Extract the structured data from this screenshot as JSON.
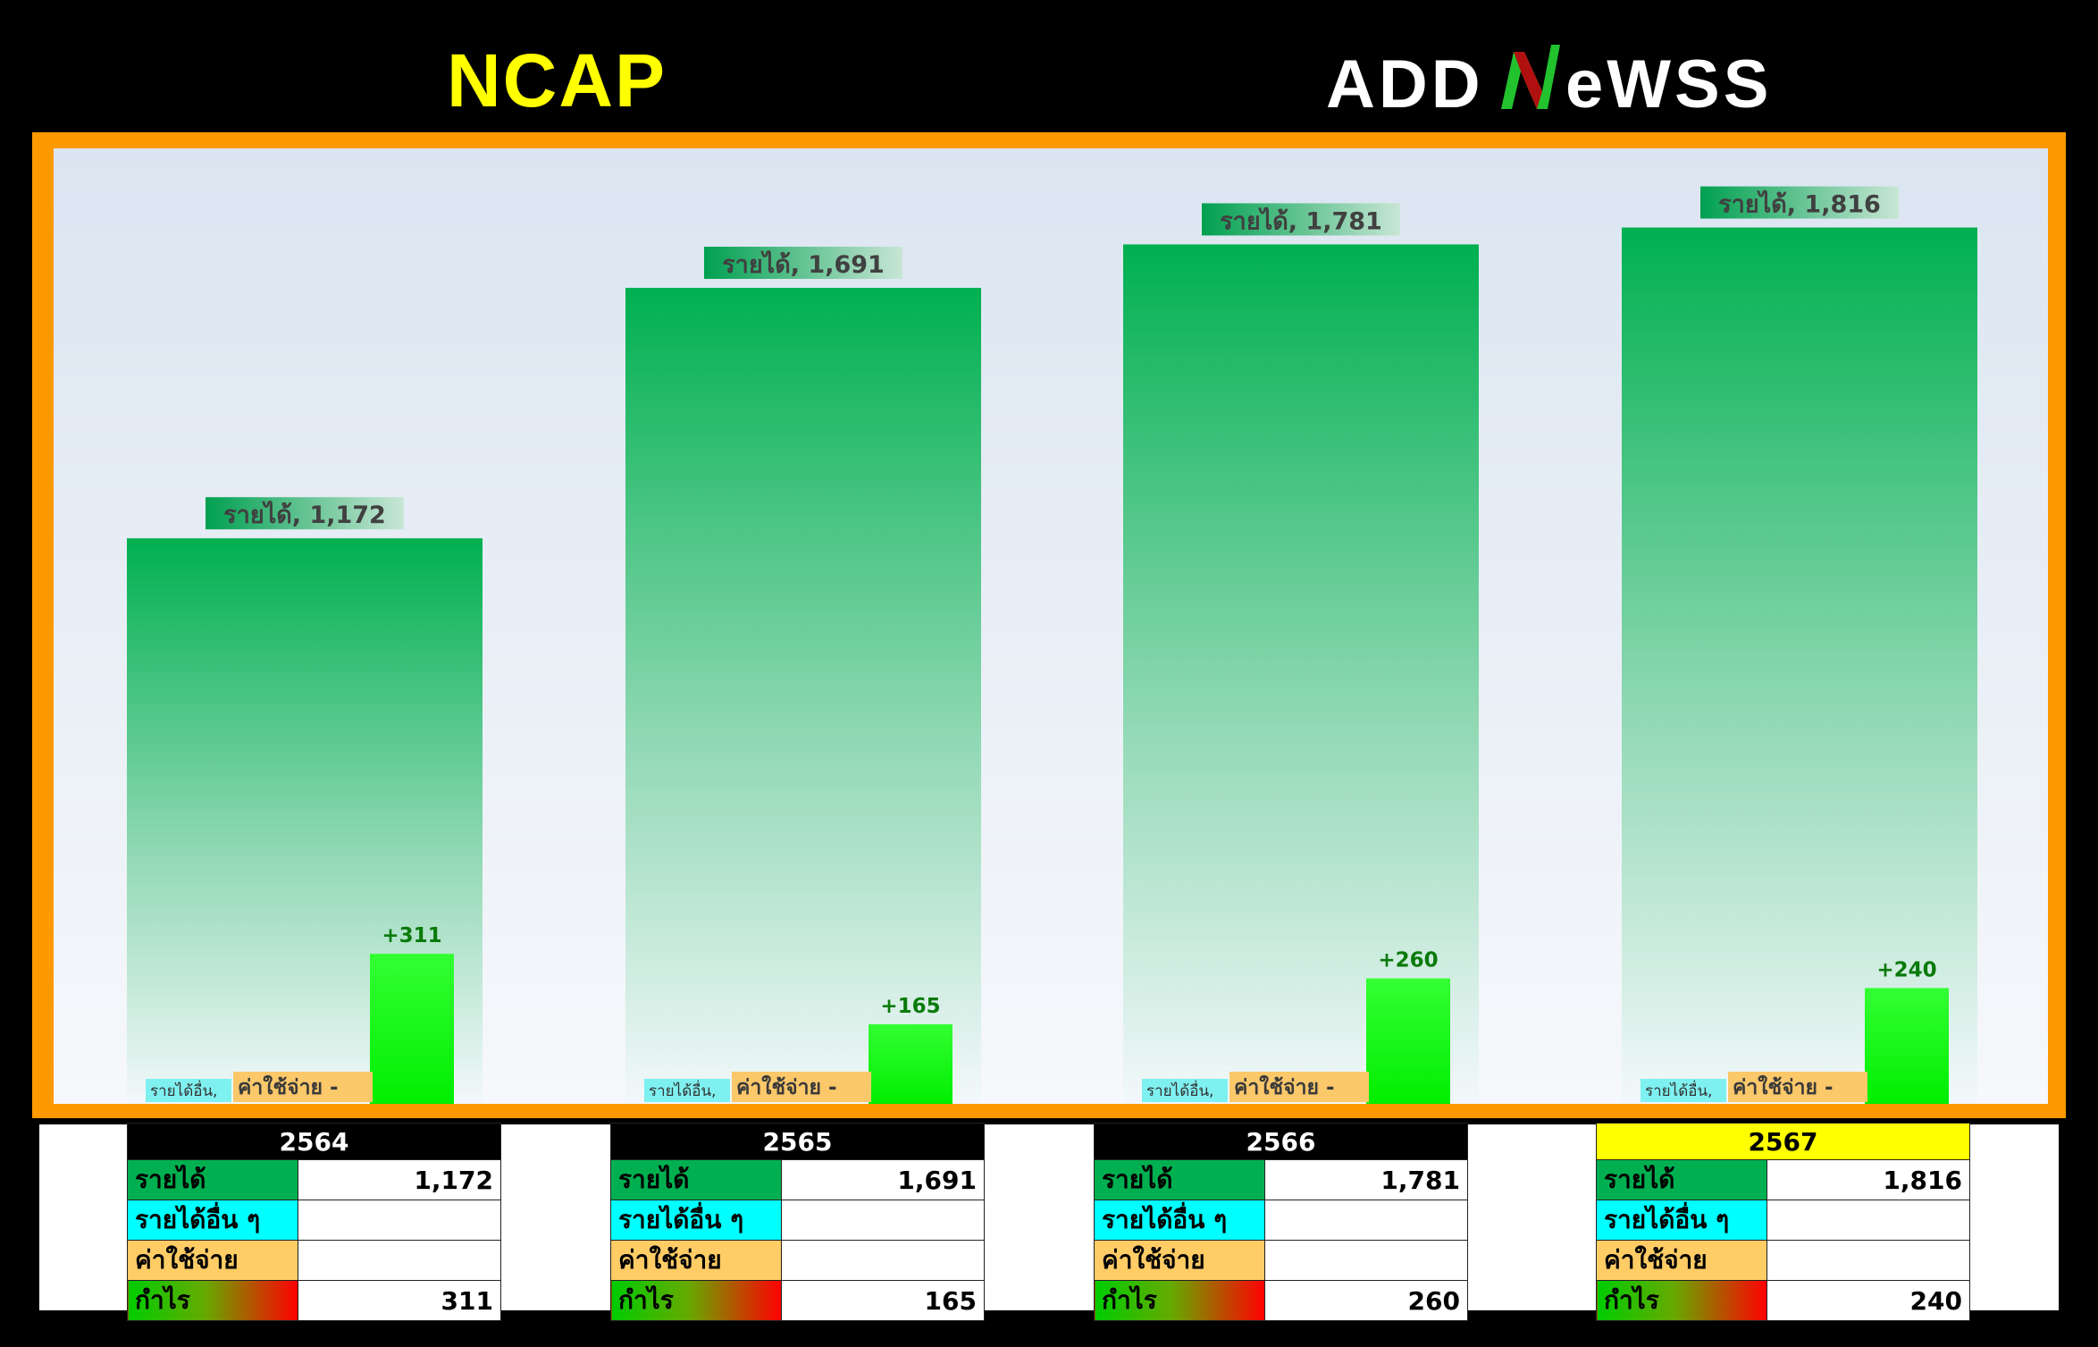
{
  "header": {
    "title": "NCAP",
    "logo_text": "ADDNewss"
  },
  "chart_data": {
    "type": "bar",
    "categories": [
      "2564",
      "2565",
      "2566",
      "2567"
    ],
    "series": [
      {
        "name": "รายได้",
        "values": [
          1172,
          1691,
          1781,
          1816
        ],
        "color": "#00b050"
      },
      {
        "name": "รายได้อื่น",
        "values": [
          null,
          null,
          null,
          null
        ],
        "color": "#00ffff"
      },
      {
        "name": "ค่าใช้จ่าย",
        "values": [
          null,
          null,
          null,
          null
        ],
        "color": "#ffcc66"
      },
      {
        "name": "กำไร",
        "values": [
          311,
          165,
          260,
          240
        ],
        "color": "#1aff1a"
      }
    ],
    "data_labels": {
      "revenue": [
        "รายได้, 1,172",
        "รายได้, 1,691",
        "รายได้, 1,781",
        "รายได้, 1,816"
      ],
      "other_income": [
        "รายได้อื่น,",
        "รายได้อื่น,",
        "รายได้อื่น,",
        "รายได้อื่น,"
      ],
      "expense": [
        "ค่าใช้จ่าย -",
        "ค่าใช้จ่าย -",
        "ค่าใช้จ่าย -",
        "ค่าใช้จ่าย -"
      ],
      "profit": [
        "+311",
        "+165",
        "+260",
        "+240"
      ]
    },
    "ylim": [
      0,
      1980
    ],
    "grid": false,
    "legend": "none"
  },
  "tables": [
    {
      "year": "2564",
      "highlight": false,
      "rows": [
        {
          "label": "รายได้",
          "value": "1,172",
          "kind": "rev"
        },
        {
          "label": "รายได้อื่น ๆ",
          "value": "",
          "kind": "oth"
        },
        {
          "label": "ค่าใช้จ่าย",
          "value": "",
          "kind": "exp"
        },
        {
          "label": "กำไร",
          "value": "311",
          "kind": "prf"
        }
      ]
    },
    {
      "year": "2565",
      "highlight": false,
      "rows": [
        {
          "label": "รายได้",
          "value": "1,691",
          "kind": "rev"
        },
        {
          "label": "รายได้อื่น ๆ",
          "value": "",
          "kind": "oth"
        },
        {
          "label": "ค่าใช้จ่าย",
          "value": "",
          "kind": "exp"
        },
        {
          "label": "กำไร",
          "value": "165",
          "kind": "prf"
        }
      ]
    },
    {
      "year": "2566",
      "highlight": false,
      "rows": [
        {
          "label": "รายได้",
          "value": "1,781",
          "kind": "rev"
        },
        {
          "label": "รายได้อื่น ๆ",
          "value": "",
          "kind": "oth"
        },
        {
          "label": "ค่าใช้จ่าย",
          "value": "",
          "kind": "exp"
        },
        {
          "label": "กำไร",
          "value": "260",
          "kind": "prf"
        }
      ]
    },
    {
      "year": "2567",
      "highlight": true,
      "rows": [
        {
          "label": "รายได้",
          "value": "1,816",
          "kind": "rev"
        },
        {
          "label": "รายได้อื่น ๆ",
          "value": "",
          "kind": "oth"
        },
        {
          "label": "ค่าใช้จ่าย",
          "value": "",
          "kind": "exp"
        },
        {
          "label": "กำไร",
          "value": "240",
          "kind": "prf"
        }
      ]
    }
  ]
}
